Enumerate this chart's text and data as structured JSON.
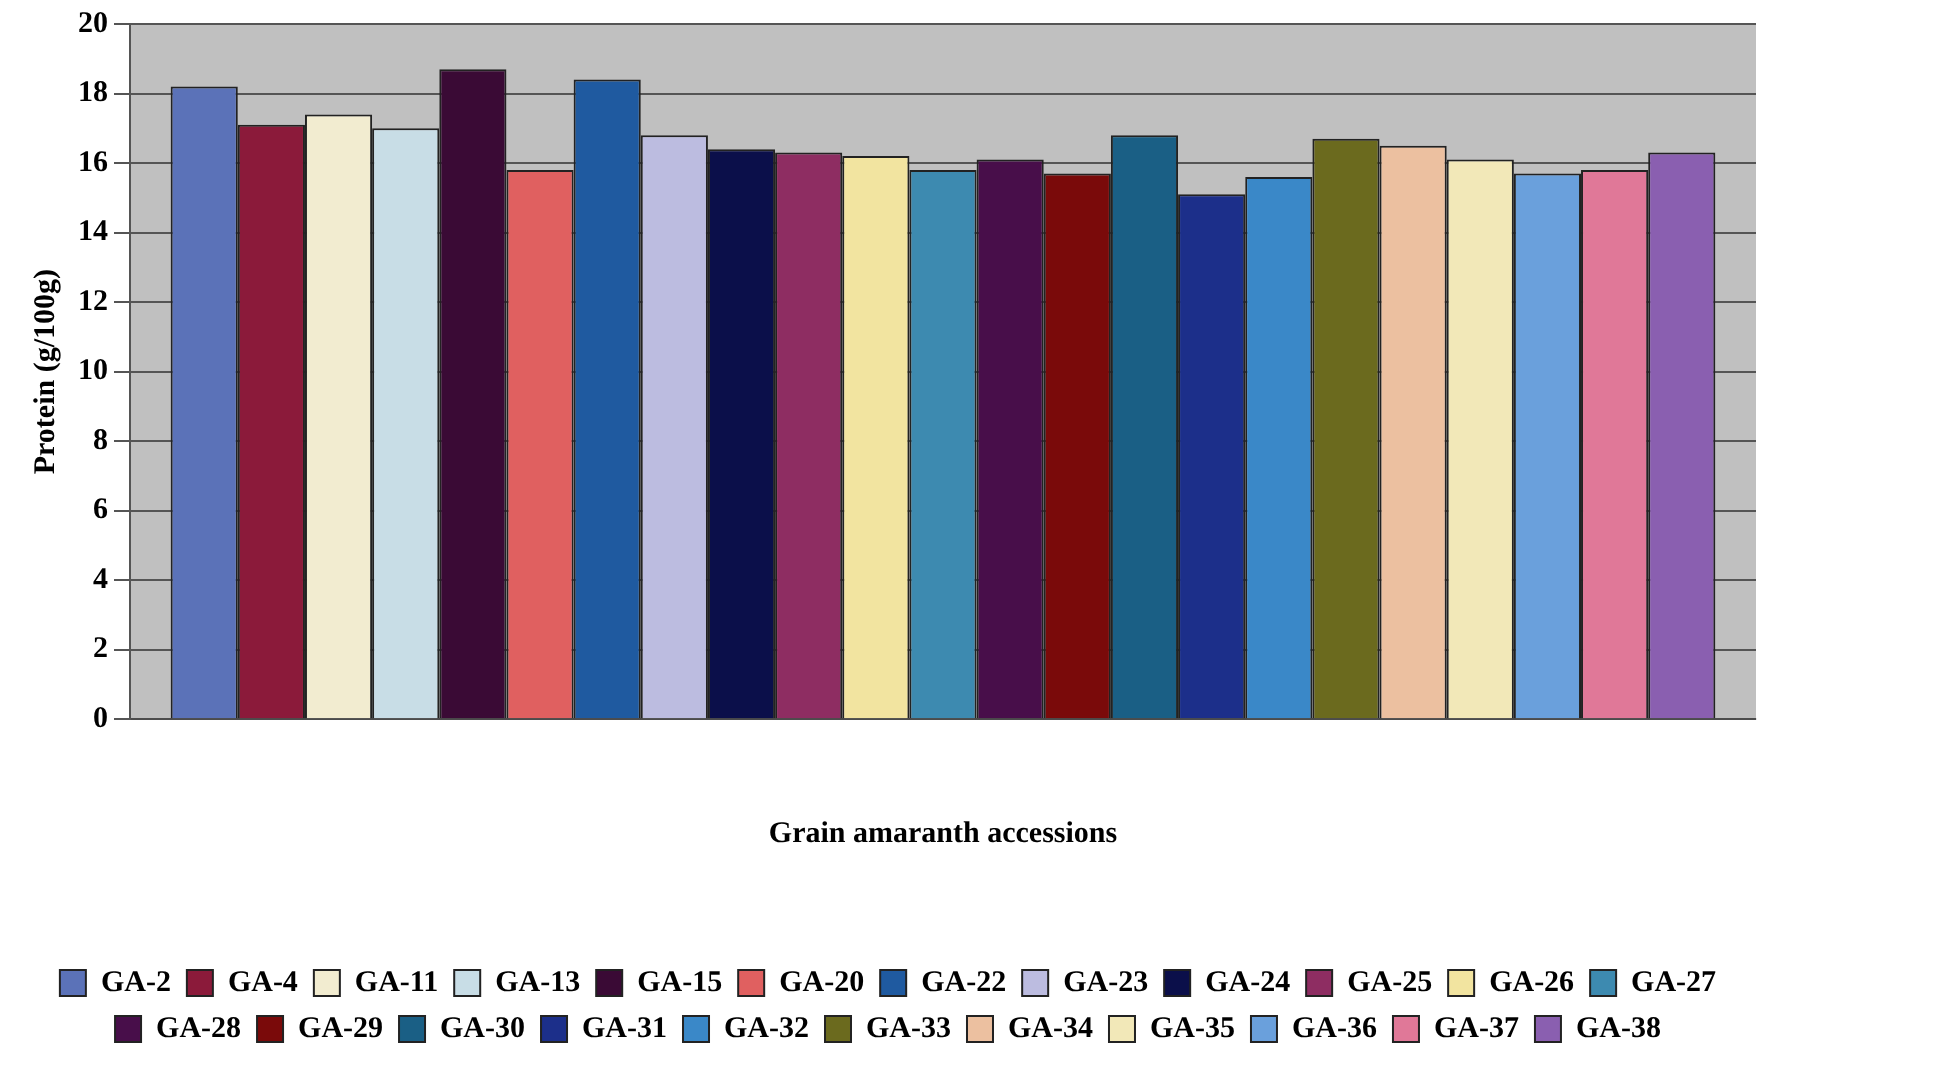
{
  "chart_data": {
    "type": "bar",
    "xlabel": "Grain amaranth accessions",
    "ylabel": "Protein (g/100g)",
    "categories": [
      null
    ],
    "ylim": [
      0,
      20
    ],
    "yticks": [
      0,
      2,
      4,
      6,
      8,
      10,
      12,
      14,
      16,
      18,
      20
    ],
    "grid": "y",
    "legend": "bottom",
    "series": [
      {
        "name": "GA-2",
        "color": "#5b72b8",
        "values": [
          18.2
        ]
      },
      {
        "name": "GA-4",
        "color": "#8b1a3a",
        "values": [
          17.1
        ]
      },
      {
        "name": "GA-11",
        "color": "#f2ecd0",
        "values": [
          17.4
        ]
      },
      {
        "name": "GA-13",
        "color": "#c8dde6",
        "values": [
          17.0
        ]
      },
      {
        "name": "GA-15",
        "color": "#3a0a35",
        "values": [
          18.7
        ]
      },
      {
        "name": "GA-20",
        "color": "#e06060",
        "values": [
          15.8
        ]
      },
      {
        "name": "GA-22",
        "color": "#1f5aa0",
        "values": [
          18.4
        ]
      },
      {
        "name": "GA-23",
        "color": "#bcbce0",
        "values": [
          16.8
        ]
      },
      {
        "name": "GA-24",
        "color": "#0b0f4a",
        "values": [
          16.4
        ]
      },
      {
        "name": "GA-25",
        "color": "#8e2d62",
        "values": [
          16.3
        ]
      },
      {
        "name": "GA-26",
        "color": "#f2e4a0",
        "values": [
          16.2
        ]
      },
      {
        "name": "GA-27",
        "color": "#3d8ab0",
        "values": [
          15.8
        ]
      },
      {
        "name": "GA-28",
        "color": "#480e4a",
        "values": [
          16.1
        ]
      },
      {
        "name": "GA-29",
        "color": "#7a0a0a",
        "values": [
          15.7
        ]
      },
      {
        "name": "GA-30",
        "color": "#1a5f85",
        "values": [
          16.8
        ]
      },
      {
        "name": "GA-31",
        "color": "#1c2f8a",
        "values": [
          15.1
        ]
      },
      {
        "name": "GA-32",
        "color": "#3a88c8",
        "values": [
          15.6
        ]
      },
      {
        "name": "GA-33",
        "color": "#6b6a1e",
        "values": [
          16.7
        ]
      },
      {
        "name": "GA-34",
        "color": "#ecc0a0",
        "values": [
          16.5
        ]
      },
      {
        "name": "GA-35",
        "color": "#f2e8b8",
        "values": [
          16.1
        ]
      },
      {
        "name": "GA-36",
        "color": "#6aa0dc",
        "values": [
          15.7
        ]
      },
      {
        "name": "GA-37",
        "color": "#e07898",
        "values": [
          15.8
        ]
      },
      {
        "name": "GA-38",
        "color": "#8a5fb0",
        "values": [
          16.3
        ]
      }
    ]
  }
}
